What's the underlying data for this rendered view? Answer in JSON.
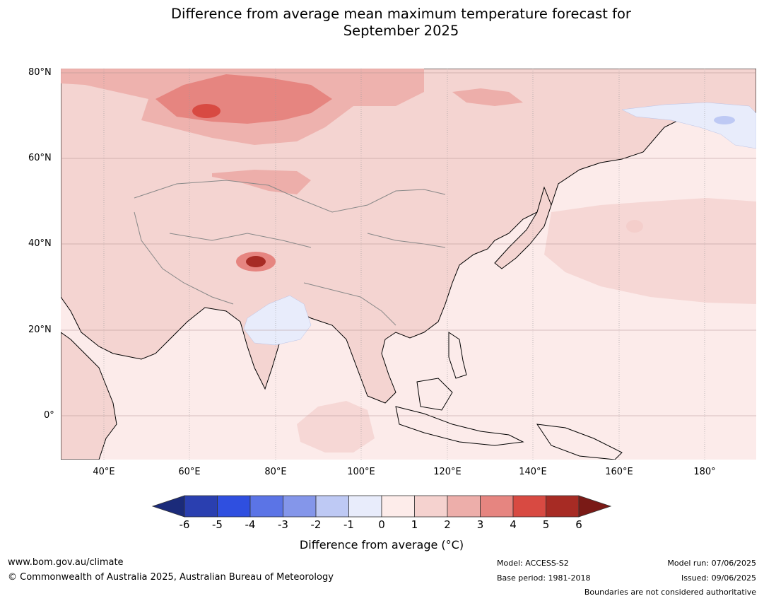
{
  "title": {
    "line1": "Difference from average mean maximum temperature forecast for",
    "line2": "September 2025"
  },
  "map": {
    "lat_labels": [
      "80°N",
      "60°N",
      "40°N",
      "20°N",
      "0°"
    ],
    "lon_labels": [
      "40°E",
      "60°E",
      "80°E",
      "100°E",
      "120°E",
      "140°E",
      "160°E",
      "180°"
    ],
    "ocean_color": "#fcebea",
    "land_color": "#f4d4d1"
  },
  "colorbar": {
    "label": "Difference from average (°C)",
    "ticks": [
      "-6",
      "-5",
      "-4",
      "-3",
      "-2",
      "-1",
      "0",
      "1",
      "2",
      "3",
      "4",
      "5",
      "6"
    ],
    "colors": [
      "#1b2b7a",
      "#2a3fb0",
      "#2f4fe0",
      "#5b74e6",
      "#8496ea",
      "#bec9f4",
      "#e8ecfb",
      "#fdecea",
      "#f5d2cf",
      "#edaeaa",
      "#e68580",
      "#d84a42",
      "#a72b24",
      "#7a1a16"
    ]
  },
  "footer": {
    "url": "www.bom.gov.au/climate",
    "copyright": "© Commonwealth of Australia 2025, Australian Bureau of Meteorology",
    "model": "Model: ACCESS-S2",
    "base_period": "Base period: 1981-2018",
    "model_run": "Model run: 07/06/2025",
    "issued": "Issued: 09/06/2025",
    "disclaimer": "Boundaries are not considered authoritative"
  }
}
